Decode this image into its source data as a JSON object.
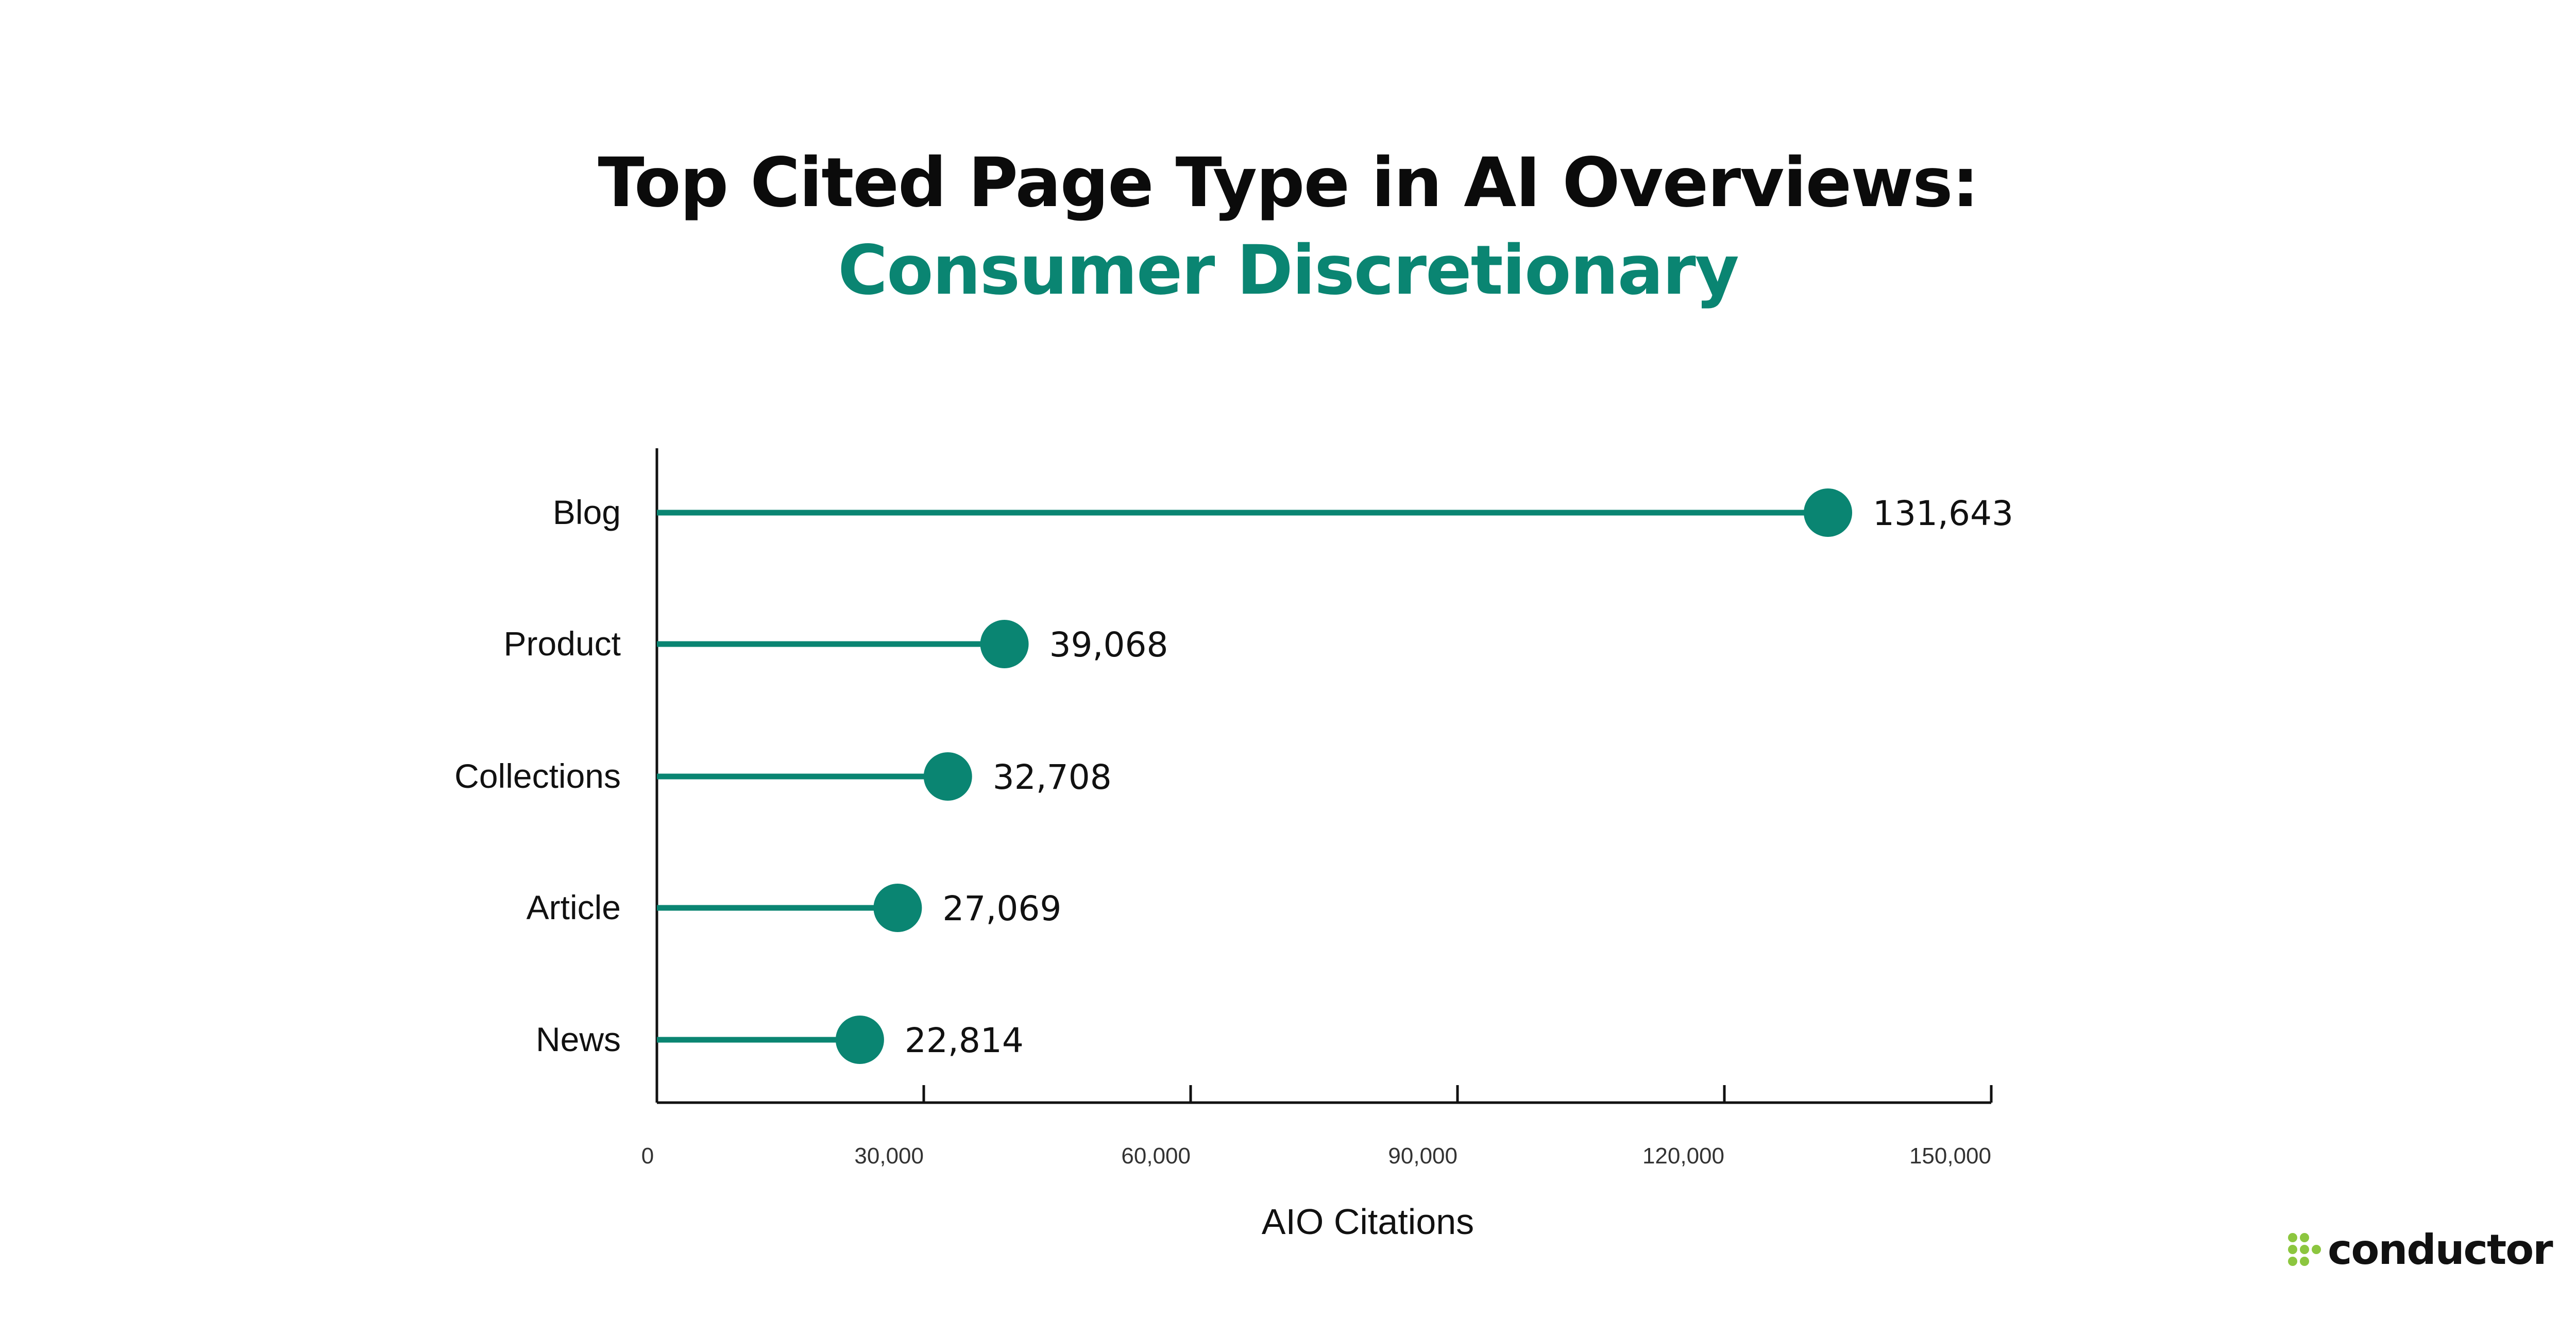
{
  "title": "Top Cited Page Type in AI Overviews:",
  "subtitle": "Consumer Discretionary",
  "colors": {
    "accent": "#0a8572",
    "logo_green": "#8cc63f",
    "text": "#111111"
  },
  "logo": {
    "icon": "conductor-dots-icon",
    "text": "conductor"
  },
  "chart_data": {
    "type": "lollipop",
    "orientation": "horizontal",
    "categories": [
      "Blog",
      "Product",
      "Collections",
      "Article",
      "News"
    ],
    "values": [
      131643,
      39068,
      32708,
      27069,
      22814
    ],
    "data_labels": [
      "131,643",
      "39,068",
      "32,708",
      "27,069",
      "22,814"
    ],
    "xlabel": "AIO Citations",
    "xlim": [
      0,
      150000
    ],
    "xticks": [
      0,
      30000,
      60000,
      90000,
      120000,
      150000
    ],
    "xtick_labels": [
      "0",
      "30,000",
      "60,000",
      "90,000",
      "120,000",
      "150,000"
    ],
    "grid": false,
    "legend": "none"
  }
}
